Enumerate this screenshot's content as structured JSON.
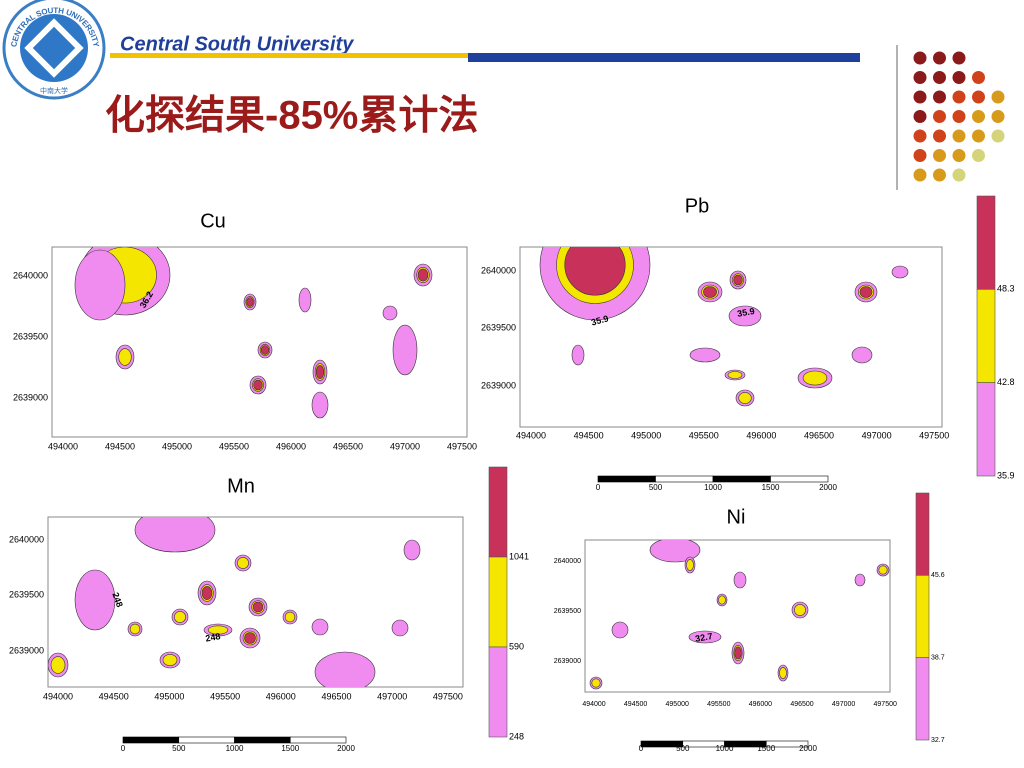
{
  "header": {
    "logo_text": "CENTRAL SOUTH UNIVERSITY",
    "logo_cn": "中南大学",
    "university": "Central South University",
    "title": "化探结果-85%累计法"
  },
  "maps": [
    {
      "label": "Cu",
      "yticks": [
        "2640000",
        "2639500",
        "2639000"
      ],
      "xticks": [
        "494000",
        "494500",
        "495000",
        "495500",
        "496000",
        "496500",
        "497000",
        "497500"
      ],
      "contour_labels": [
        "36.2"
      ]
    },
    {
      "label": "Pb",
      "yticks": [
        "2640000",
        "2639500",
        "2639000"
      ],
      "xticks": [
        "494000",
        "494500",
        "495000",
        "495500",
        "496000",
        "496500",
        "497000",
        "497500"
      ],
      "contour_labels": [
        "35.9",
        "35.9"
      ],
      "legend": [
        "48.3",
        "42.8",
        "35.9"
      ],
      "scale": [
        "0",
        "500",
        "1000",
        "1500",
        "2000"
      ]
    },
    {
      "label": "Mn",
      "yticks": [
        "2640000",
        "2639500",
        "2639000"
      ],
      "xticks": [
        "494000",
        "494500",
        "495000",
        "495500",
        "496000",
        "496500",
        "497000",
        "497500"
      ],
      "contour_labels": [
        "248",
        "248"
      ],
      "legend": [
        "1041",
        "590",
        "248"
      ],
      "scale": [
        "0",
        "500",
        "1000",
        "1500",
        "2000"
      ]
    },
    {
      "label": "Ni",
      "yticks": [
        "2640000",
        "2639500",
        "2639000"
      ],
      "xticks": [
        "494000",
        "494500",
        "495000",
        "495500",
        "496000",
        "496500",
        "497000",
        "497500"
      ],
      "contour_labels": [
        "32.7"
      ],
      "legend": [
        "45.6",
        "38.7",
        "32.7"
      ],
      "scale": [
        "0",
        "500",
        "1000",
        "1500",
        "2000"
      ]
    }
  ]
}
